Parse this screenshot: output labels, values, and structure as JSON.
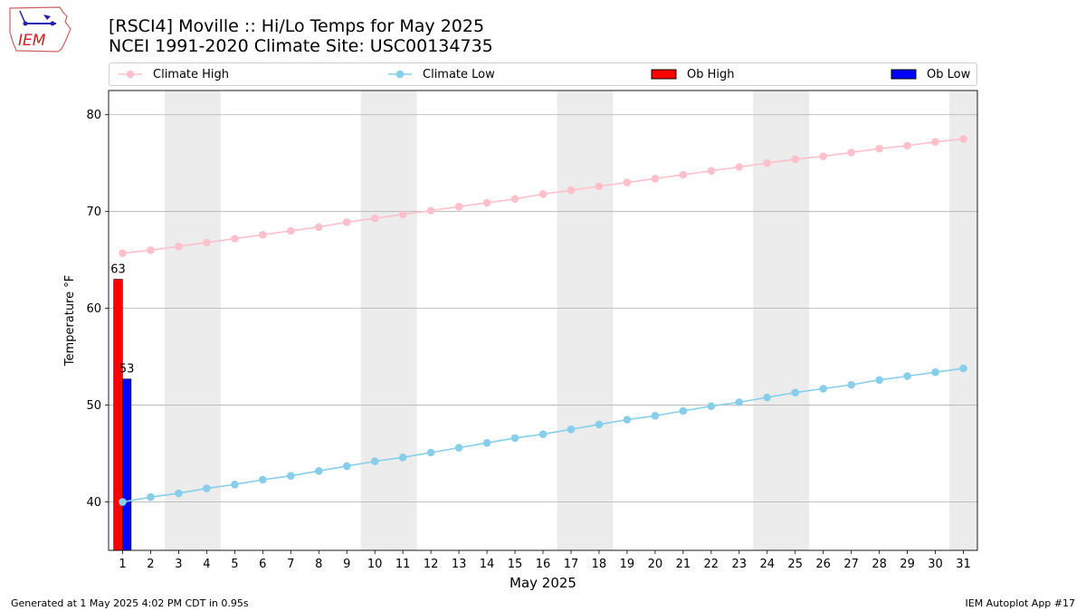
{
  "header": {
    "logo_text": "IEM",
    "title_line1": "[RSCI4] Moville :: Hi/Lo Temps for May 2025",
    "title_line2": "NCEI 1991-2020 Climate Site: USC00134735"
  },
  "legend": {
    "climate_high": "Climate High",
    "climate_low": "Climate Low",
    "ob_high": "Ob High",
    "ob_low": "Ob Low"
  },
  "colors": {
    "climate_high": "#ffc0cb",
    "climate_low": "#87ceeb",
    "ob_high": "#ff0000",
    "ob_low": "#0000ff",
    "weekend_band": "#ececec",
    "grid": "#b0b0b0"
  },
  "footer": {
    "left": "Generated at 1 May 2025 4:02 PM CDT in 0.95s",
    "right": "IEM Autoplot App #17"
  },
  "chart_data": {
    "type": "bar+line",
    "title": "[RSCI4] Moville :: Hi/Lo Temps for May 2025",
    "subtitle": "NCEI 1991-2020 Climate Site: USC00134735",
    "xlabel": "May 2025",
    "ylabel": "Temperature °F",
    "xlim": [
      0.5,
      31.5
    ],
    "ylim": [
      35,
      82.5
    ],
    "yticks": [
      40,
      50,
      60,
      70,
      80
    ],
    "grid": "horizontal",
    "legend_position": "top",
    "days": [
      1,
      2,
      3,
      4,
      5,
      6,
      7,
      8,
      9,
      10,
      11,
      12,
      13,
      14,
      15,
      16,
      17,
      18,
      19,
      20,
      21,
      22,
      23,
      24,
      25,
      26,
      27,
      28,
      29,
      30,
      31
    ],
    "weekend_bands": [
      [
        3,
        4
      ],
      [
        10,
        11
      ],
      [
        17,
        18
      ],
      [
        24,
        25
      ],
      [
        31,
        31
      ]
    ],
    "series": [
      {
        "name": "Climate High",
        "kind": "line",
        "values": [
          65.7,
          66.0,
          66.4,
          66.8,
          67.2,
          67.6,
          68.0,
          68.4,
          68.9,
          69.3,
          69.7,
          70.1,
          70.5,
          70.9,
          71.3,
          71.8,
          72.2,
          72.6,
          73.0,
          73.4,
          73.8,
          74.2,
          74.6,
          75.0,
          75.4,
          75.7,
          76.1,
          76.5,
          76.8,
          77.2,
          77.5
        ]
      },
      {
        "name": "Climate Low",
        "kind": "line",
        "values": [
          40.0,
          40.5,
          40.9,
          41.4,
          41.8,
          42.3,
          42.7,
          43.2,
          43.7,
          44.2,
          44.6,
          45.1,
          45.6,
          46.1,
          46.6,
          47.0,
          47.5,
          48.0,
          48.5,
          48.9,
          49.4,
          49.9,
          50.3,
          50.8,
          51.3,
          51.7,
          52.1,
          52.6,
          53.0,
          53.4,
          53.8
        ]
      },
      {
        "name": "Ob High",
        "kind": "bar",
        "days": [
          1
        ],
        "values": [
          63
        ],
        "labels": [
          "63"
        ]
      },
      {
        "name": "Ob Low",
        "kind": "bar",
        "days": [
          1
        ],
        "values": [
          52.7
        ],
        "labels": [
          "53"
        ]
      }
    ]
  }
}
